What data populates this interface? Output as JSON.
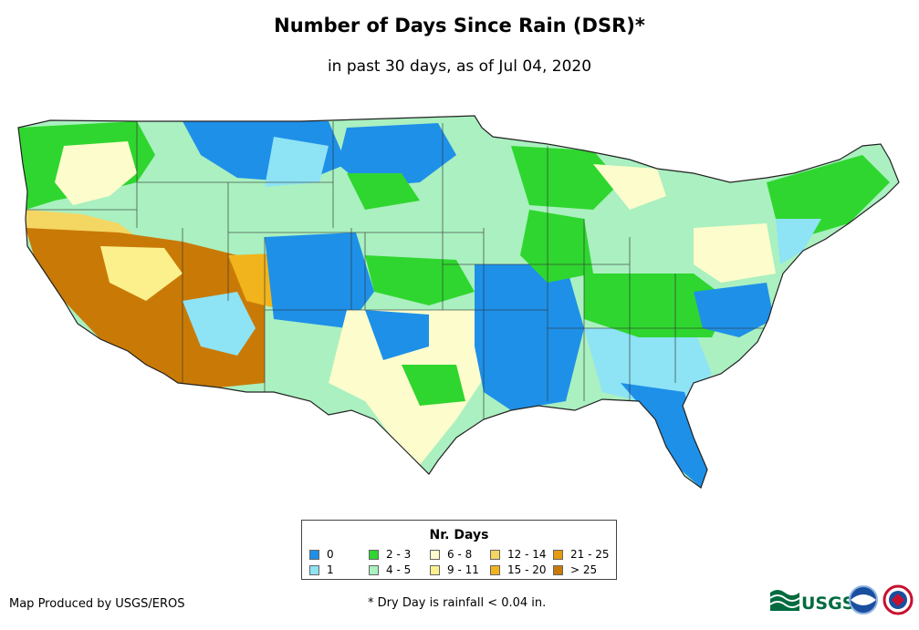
{
  "header": {
    "title": "Number of Days Since Rain (DSR)*",
    "subtitle": "in past 30 days, as of Jul 04, 2020"
  },
  "legend": {
    "title": "Nr. Days",
    "items": [
      {
        "label": "0",
        "color": "#1e90e8"
      },
      {
        "label": "1",
        "color": "#8ee3f5"
      },
      {
        "label": "2 - 3",
        "color": "#2fd62f"
      },
      {
        "label": "4 - 5",
        "color": "#aaf0c0"
      },
      {
        "label": "6 - 8",
        "color": "#fdfccc"
      },
      {
        "label": "9 - 11",
        "color": "#fbf08c"
      },
      {
        "label": "12 - 14",
        "color": "#f4d662"
      },
      {
        "label": "15 - 20",
        "color": "#f2b41c"
      },
      {
        "label": "21 - 25",
        "color": "#e89a10"
      },
      {
        "label": "> 25",
        "color": "#c97a06"
      }
    ]
  },
  "footer": {
    "credit": "Map Produced by USGS/EROS",
    "footnote": "* Dry Day is rainfall < 0.04 in.",
    "logo_text": "USGS"
  }
}
